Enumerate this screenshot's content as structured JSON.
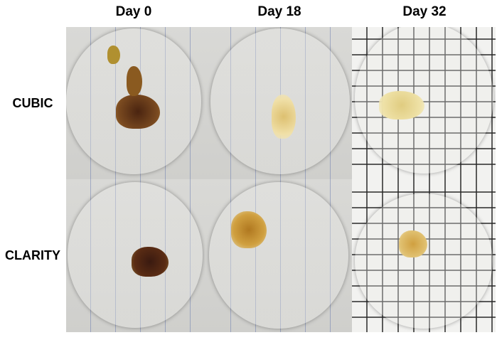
{
  "columns": [
    "Day 0",
    "Day 18",
    "Day 32"
  ],
  "rows": [
    "CUBIC",
    "CLARITY"
  ],
  "colors": {
    "dark_tissue": "#5a2c14",
    "light_tissue": "#e6d490",
    "background_paper": "#d6d6d3"
  }
}
